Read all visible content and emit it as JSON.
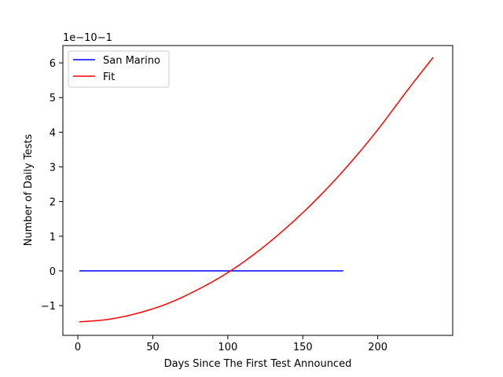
{
  "chart_data": {
    "type": "line",
    "xlabel": "Days Since The First Test Announced",
    "ylabel": "Number of Daily Tests",
    "offset_label": "1e−10−1",
    "xlim": [
      -10,
      250
    ],
    "ylim": [
      -1.86,
      6.5
    ],
    "x_ticks": [
      0,
      50,
      100,
      150,
      200
    ],
    "x_tick_labels": [
      "0",
      "50",
      "100",
      "150",
      "200"
    ],
    "y_ticks": [
      -1,
      0,
      1,
      2,
      3,
      4,
      5,
      6
    ],
    "y_tick_labels": [
      "−1",
      "0",
      "1",
      "2",
      "3",
      "4",
      "5",
      "6"
    ],
    "legend_position": "top-left",
    "grid": false,
    "series": [
      {
        "name": "San Marino",
        "color": "#0000ff",
        "x": [
          1,
          177
        ],
        "y": [
          0,
          0
        ]
      },
      {
        "name": "Fit",
        "color": "#ff0000",
        "x": [
          1,
          20,
          40,
          60,
          80,
          100,
          120,
          140,
          160,
          180,
          200,
          220,
          237
        ],
        "y": [
          -1.47,
          -1.4,
          -1.22,
          -0.94,
          -0.54,
          -0.05,
          0.56,
          1.28,
          2.1,
          3.03,
          4.07,
          5.22,
          6.16
        ]
      }
    ]
  }
}
